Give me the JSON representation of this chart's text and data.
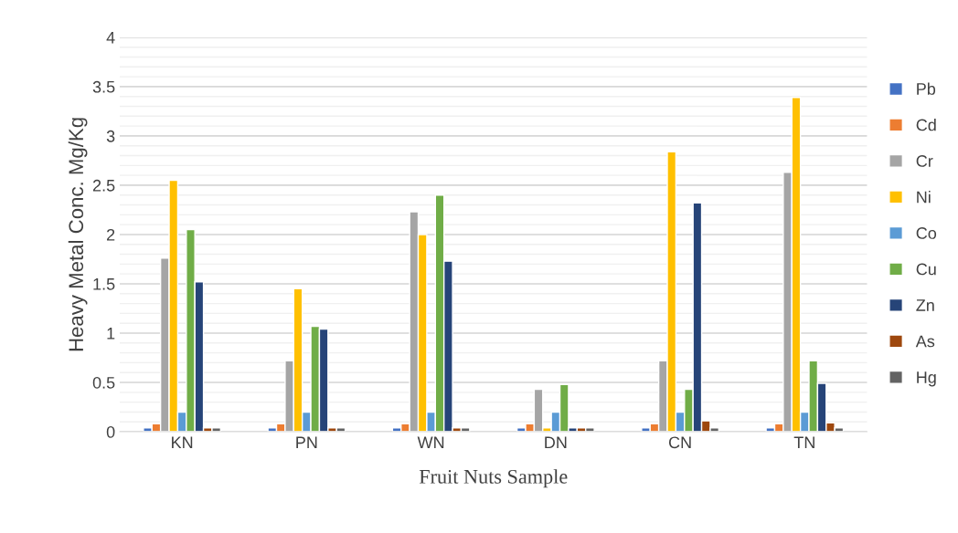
{
  "chart_data": {
    "type": "bar",
    "xlabel": "Fruit Nuts Sample",
    "ylabel": "Heavy Metal Conc. Mg/Kg",
    "categories": [
      "KN",
      "PN",
      "WN",
      "DN",
      "CN",
      "TN"
    ],
    "series": [
      {
        "name": "Pb",
        "color": "#4472c4",
        "values": [
          0.04,
          0.04,
          0.04,
          0.04,
          0.04,
          0.04
        ]
      },
      {
        "name": "Cd",
        "color": "#ed7d31",
        "values": [
          0.08,
          0.08,
          0.08,
          0.08,
          0.08,
          0.08
        ]
      },
      {
        "name": "Cr",
        "color": "#a5a5a5",
        "values": [
          1.76,
          0.72,
          2.23,
          0.43,
          0.72,
          2.63
        ]
      },
      {
        "name": "Ni",
        "color": "#ffc000",
        "values": [
          2.55,
          1.45,
          2.0,
          0.04,
          2.84,
          3.39
        ]
      },
      {
        "name": "Co",
        "color": "#5b9bd5",
        "values": [
          0.2,
          0.2,
          0.2,
          0.2,
          0.2,
          0.2
        ]
      },
      {
        "name": "Cu",
        "color": "#70ad47",
        "values": [
          2.05,
          1.07,
          2.4,
          0.48,
          0.43,
          0.72
        ]
      },
      {
        "name": "Zn",
        "color": "#264478",
        "values": [
          1.52,
          1.04,
          1.73,
          0.04,
          2.32,
          0.49
        ]
      },
      {
        "name": "As",
        "color": "#9e480e",
        "values": [
          0.04,
          0.04,
          0.04,
          0.04,
          0.11,
          0.09
        ]
      },
      {
        "name": "Hg",
        "color": "#636363",
        "values": [
          0.04,
          0.04,
          0.04,
          0.04,
          0.04,
          0.04
        ]
      }
    ],
    "ylim": [
      0,
      4
    ],
    "yticks": [
      0,
      0.5,
      1,
      1.5,
      2,
      2.5,
      3,
      3.5,
      4
    ],
    "grid": "y",
    "legend": "right"
  }
}
